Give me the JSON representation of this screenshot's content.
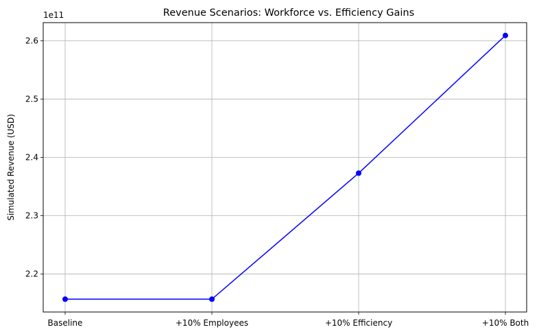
{
  "chart_data": {
    "type": "line",
    "title": "Revenue Scenarios: Workforce vs. Efficiency Gains",
    "xlabel": "",
    "ylabel": "Simulated Revenue (USD)",
    "offset_label": "1e11",
    "categories": [
      "Baseline",
      "+10% Employees",
      "+10% Efficiency",
      "+10% Both"
    ],
    "series": [
      {
        "values": [
          2.157,
          2.157,
          2.373,
          2.609
        ],
        "color": "#0000ff",
        "marker": "circle"
      }
    ],
    "yticks": [
      2.2,
      2.3,
      2.4,
      2.5,
      2.6
    ],
    "ytick_labels": [
      "2.2",
      "2.3",
      "2.4",
      "2.5",
      "2.6"
    ],
    "ylim": [
      2.135,
      2.631
    ],
    "grid": true
  }
}
